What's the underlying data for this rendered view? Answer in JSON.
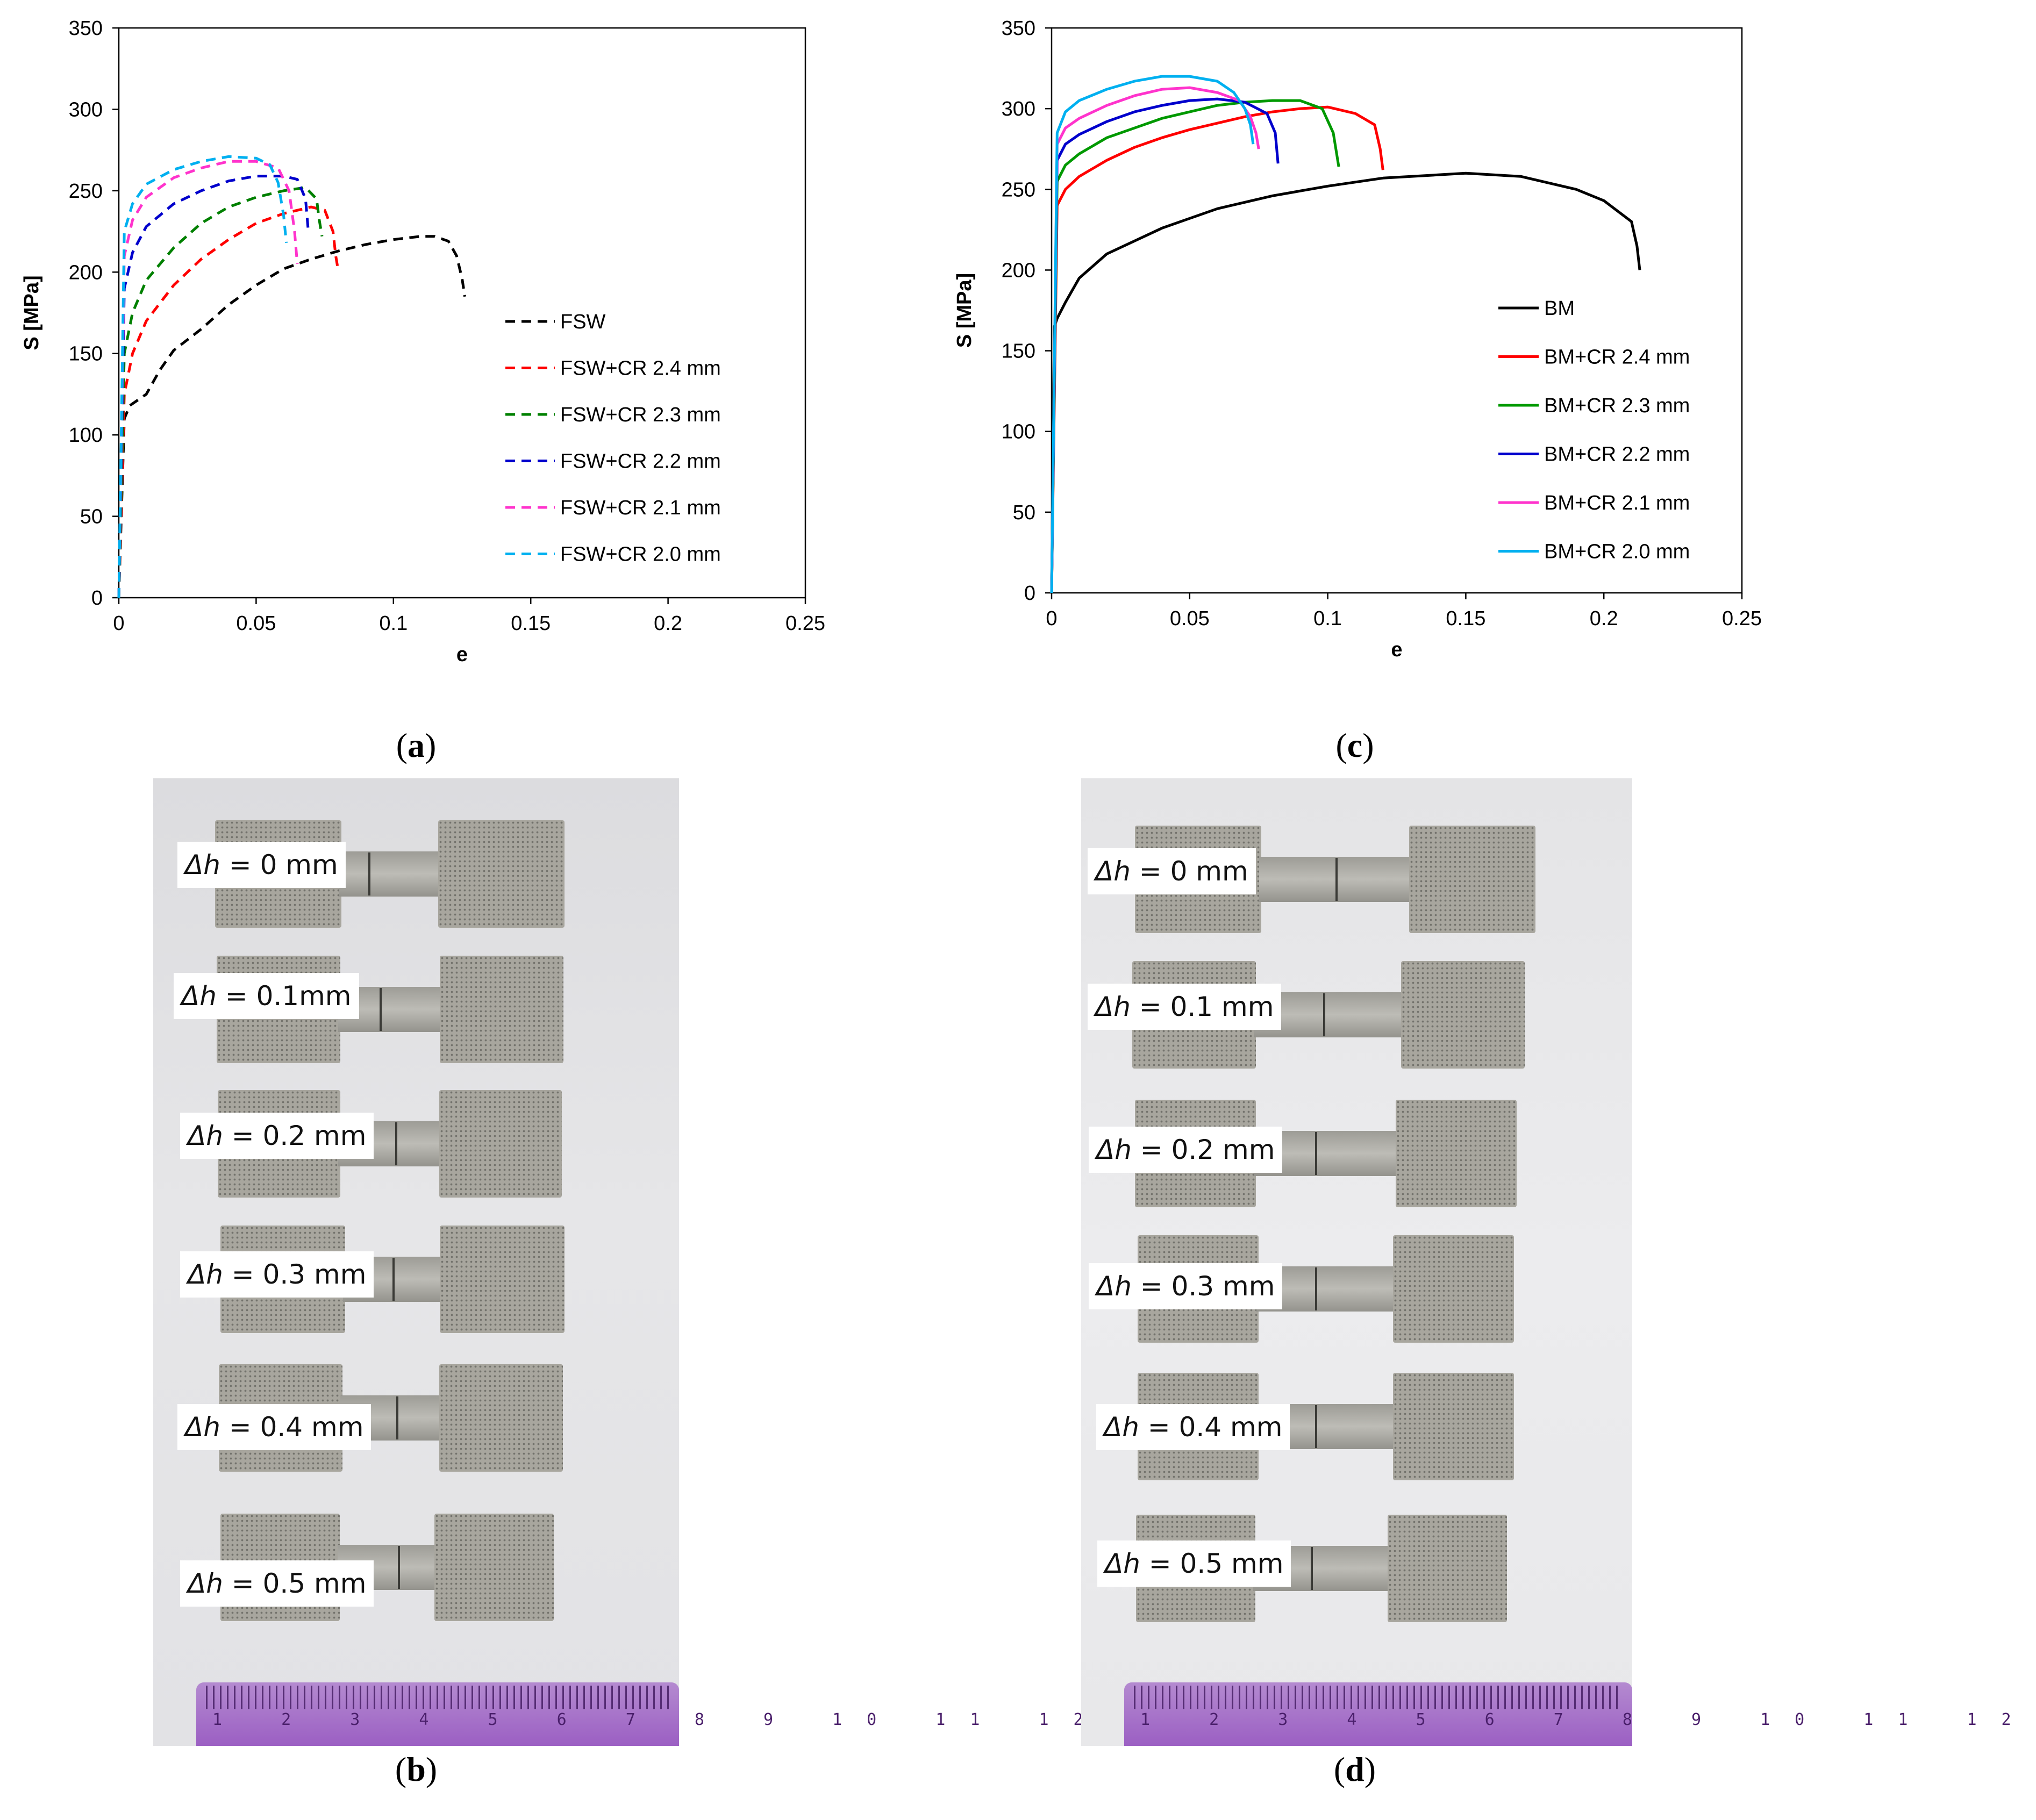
{
  "figure_labels": {
    "a": "a",
    "b": "b",
    "c": "c",
    "d": "d"
  },
  "photo_b": {
    "labels": [
      {
        "sym": "Δh",
        "text": " = 0 mm"
      },
      {
        "sym": "Δh",
        "text": " = 0.1mm"
      },
      {
        "sym": "Δh",
        "text": " = 0.2 mm"
      },
      {
        "sym": "Δh",
        "text": " = 0.3 mm"
      },
      {
        "sym": "Δh",
        "text": " = 0.4 mm"
      },
      {
        "sym": "Δh",
        "text": " = 0.5 mm"
      }
    ],
    "ruler_text": "1 2 3 4 5 6 7 8 9 10 11 12"
  },
  "photo_d": {
    "labels": [
      {
        "sym": "Δh",
        "text": " = 0 mm"
      },
      {
        "sym": "Δh",
        "text": " = 0.1 mm"
      },
      {
        "sym": "Δh",
        "text": " = 0.2 mm"
      },
      {
        "sym": "Δh",
        "text": " = 0.3 mm"
      },
      {
        "sym": "Δh",
        "text": " = 0.4 mm"
      },
      {
        "sym": "Δh",
        "text": " = 0.5 mm"
      }
    ],
    "ruler_text": "1 2 3 4 5 6 7 8 9 10 11 12"
  },
  "chart_data": [
    {
      "id": "a",
      "type": "line",
      "xlabel": "e",
      "ylabel": "S [MPa]",
      "xlim": [
        0,
        0.25
      ],
      "ylim": [
        0,
        350
      ],
      "xticks": [
        0,
        0.05,
        0.1,
        0.15,
        0.2,
        0.25
      ],
      "xtick_labels": [
        "0",
        "0.05",
        "0.1",
        "0.15",
        "0.2",
        "0.25"
      ],
      "yticks": [
        0,
        50,
        100,
        150,
        200,
        250,
        300,
        350
      ],
      "ytick_labels": [
        "0",
        "50",
        "100",
        "150",
        "200",
        "250",
        "300",
        "350"
      ],
      "line_style": "dashed",
      "legend_position": "right",
      "series": [
        {
          "name": "FSW",
          "color": "#000000",
          "x": [
            0,
            0.002,
            0.004,
            0.01,
            0.015,
            0.02,
            0.03,
            0.04,
            0.05,
            0.06,
            0.07,
            0.08,
            0.09,
            0.1,
            0.11,
            0.115,
            0.12,
            0.123,
            0.125,
            0.126
          ],
          "y": [
            0,
            110,
            118,
            125,
            140,
            152,
            165,
            180,
            192,
            202,
            208,
            213,
            217,
            220,
            222,
            222,
            219,
            210,
            196,
            185
          ]
        },
        {
          "name": "FSW+CR 2.4 mm",
          "color": "#ff0000",
          "x": [
            0,
            0.002,
            0.005,
            0.01,
            0.02,
            0.03,
            0.04,
            0.05,
            0.06,
            0.07,
            0.075,
            0.078,
            0.079,
            0.08
          ],
          "y": [
            0,
            125,
            150,
            170,
            192,
            208,
            220,
            230,
            236,
            240,
            238,
            225,
            210,
            200
          ]
        },
        {
          "name": "FSW+CR 2.3 mm",
          "color": "#008000",
          "x": [
            0,
            0.002,
            0.005,
            0.01,
            0.02,
            0.03,
            0.04,
            0.05,
            0.06,
            0.068,
            0.072,
            0.073,
            0.074
          ],
          "y": [
            0,
            150,
            175,
            195,
            215,
            230,
            240,
            246,
            250,
            252,
            245,
            232,
            222
          ]
        },
        {
          "name": "FSW+CR 2.2 mm",
          "color": "#0000cc",
          "x": [
            0,
            0.002,
            0.005,
            0.01,
            0.02,
            0.03,
            0.04,
            0.05,
            0.06,
            0.065,
            0.068,
            0.069
          ],
          "y": [
            0,
            190,
            212,
            228,
            242,
            250,
            256,
            259,
            259,
            257,
            245,
            225
          ]
        },
        {
          "name": "FSW+CR 2.1 mm",
          "color": "#ff33cc",
          "x": [
            0,
            0.002,
            0.005,
            0.01,
            0.02,
            0.03,
            0.04,
            0.05,
            0.058,
            0.062,
            0.064,
            0.065
          ],
          "y": [
            0,
            210,
            232,
            246,
            258,
            264,
            268,
            268,
            264,
            250,
            225,
            205
          ]
        },
        {
          "name": "FSW+CR 2.0 mm",
          "color": "#00b0f0",
          "x": [
            0,
            0.002,
            0.005,
            0.01,
            0.02,
            0.03,
            0.04,
            0.05,
            0.055,
            0.058,
            0.06,
            0.061
          ],
          "y": [
            0,
            225,
            242,
            254,
            263,
            268,
            271,
            270,
            266,
            255,
            235,
            218
          ]
        }
      ]
    },
    {
      "id": "c",
      "type": "line",
      "xlabel": "e",
      "ylabel": "S [MPa]",
      "xlim": [
        0,
        0.25
      ],
      "ylim": [
        0,
        350
      ],
      "xticks": [
        0,
        0.05,
        0.1,
        0.15,
        0.2,
        0.25
      ],
      "xtick_labels": [
        "0",
        "0.05",
        "0.1",
        "0.15",
        "0.2",
        "0.25"
      ],
      "yticks": [
        0,
        50,
        100,
        150,
        200,
        250,
        300,
        350
      ],
      "ytick_labels": [
        "0",
        "50",
        "100",
        "150",
        "200",
        "250",
        "300",
        "350"
      ],
      "line_style": "solid",
      "legend_position": "right",
      "series": [
        {
          "name": "BM",
          "color": "#000000",
          "x": [
            0,
            0.001,
            0.002,
            0.005,
            0.01,
            0.02,
            0.03,
            0.04,
            0.05,
            0.06,
            0.08,
            0.1,
            0.12,
            0.14,
            0.15,
            0.17,
            0.19,
            0.2,
            0.21,
            0.212,
            0.213
          ],
          "y": [
            0,
            165,
            170,
            180,
            195,
            210,
            218,
            226,
            232,
            238,
            246,
            252,
            257,
            259,
            260,
            258,
            250,
            243,
            230,
            215,
            200
          ]
        },
        {
          "name": "BM+CR 2.4 mm",
          "color": "#ff0000",
          "x": [
            0,
            0.002,
            0.005,
            0.01,
            0.02,
            0.03,
            0.04,
            0.05,
            0.06,
            0.07,
            0.08,
            0.09,
            0.1,
            0.11,
            0.117,
            0.119,
            0.12
          ],
          "y": [
            0,
            240,
            250,
            258,
            268,
            276,
            282,
            287,
            291,
            295,
            298,
            300,
            301,
            297,
            290,
            275,
            262
          ]
        },
        {
          "name": "BM+CR 2.3 mm",
          "color": "#009900",
          "x": [
            0,
            0.002,
            0.005,
            0.01,
            0.02,
            0.03,
            0.04,
            0.05,
            0.06,
            0.07,
            0.08,
            0.09,
            0.098,
            0.102,
            0.104
          ],
          "y": [
            0,
            255,
            265,
            272,
            282,
            288,
            294,
            298,
            302,
            304,
            305,
            305,
            300,
            285,
            264
          ]
        },
        {
          "name": "BM+CR 2.2 mm",
          "color": "#0000cc",
          "x": [
            0,
            0.002,
            0.005,
            0.01,
            0.02,
            0.03,
            0.04,
            0.05,
            0.06,
            0.07,
            0.078,
            0.081,
            0.082
          ],
          "y": [
            0,
            268,
            278,
            284,
            292,
            298,
            302,
            305,
            306,
            304,
            297,
            285,
            266
          ]
        },
        {
          "name": "BM+CR 2.1 mm",
          "color": "#ff33cc",
          "x": [
            0,
            0.002,
            0.005,
            0.01,
            0.02,
            0.03,
            0.04,
            0.05,
            0.06,
            0.068,
            0.072,
            0.074,
            0.075
          ],
          "y": [
            0,
            278,
            288,
            294,
            302,
            308,
            312,
            313,
            310,
            305,
            295,
            285,
            275
          ]
        },
        {
          "name": "BM+CR 2.0 mm",
          "color": "#00b0f0",
          "x": [
            0,
            0.002,
            0.005,
            0.01,
            0.02,
            0.03,
            0.04,
            0.05,
            0.06,
            0.066,
            0.07,
            0.072,
            0.073
          ],
          "y": [
            0,
            285,
            298,
            305,
            312,
            317,
            320,
            320,
            317,
            310,
            300,
            290,
            278
          ]
        }
      ]
    }
  ]
}
